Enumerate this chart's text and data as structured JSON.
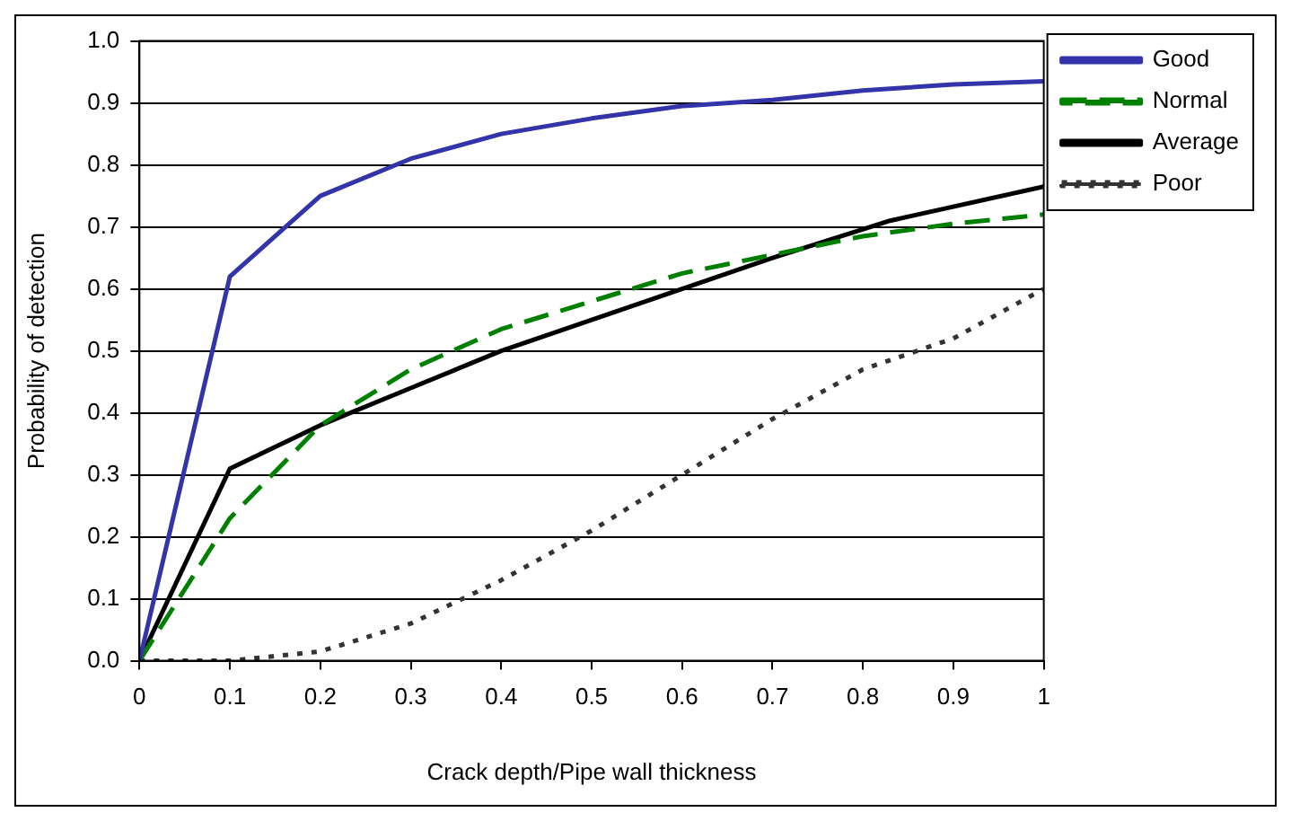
{
  "chart_data": {
    "type": "line",
    "xlabel": "Crack depth/Pipe wall thickness",
    "ylabel": "Probability of detection",
    "xlim": [
      0,
      1
    ],
    "xticks": [
      0,
      0.1,
      0.2,
      0.3,
      0.4,
      0.5,
      0.6,
      0.7,
      0.8,
      0.9,
      1
    ],
    "ylim": [
      0,
      1
    ],
    "yticks": [
      {
        "value": 0,
        "label": "0.0"
      },
      0.1,
      0.2,
      0.3,
      0.4,
      0.5,
      0.6,
      0.7,
      0.8,
      0.9,
      {
        "value": 1,
        "label": "1.0"
      }
    ],
    "grid": "y",
    "legend": "right",
    "marker": "none",
    "series": [
      {
        "name": "Good",
        "color": "#3333aa",
        "line_style": "solid",
        "x": [
          0,
          0.1,
          0.2,
          0.3,
          0.4,
          0.5,
          0.6,
          0.7,
          0.8,
          0.9,
          1
        ],
        "values": [
          0,
          0.62,
          0.75,
          0.81,
          0.85,
          0.875,
          0.895,
          0.905,
          0.92,
          0.93,
          0.935
        ]
      },
      {
        "name": "Normal",
        "color": "#008000",
        "line_style": "dashed",
        "x": [
          0,
          0.1,
          0.2,
          0.3,
          0.4,
          0.5,
          0.6,
          0.7,
          0.8,
          0.9,
          1
        ],
        "values": [
          0,
          0.23,
          0.38,
          0.47,
          0.535,
          0.58,
          0.625,
          0.655,
          0.685,
          0.705,
          0.72
        ]
      },
      {
        "name": "Average",
        "color": "#000000",
        "line_style": "solid",
        "x": [
          0,
          0.1,
          0.2,
          0.3,
          0.4,
          0.5,
          0.6,
          0.7,
          0.83,
          1
        ],
        "values": [
          0,
          0.31,
          0.38,
          0.44,
          0.5,
          0.55,
          0.6,
          0.65,
          0.71,
          0.765
        ]
      },
      {
        "name": "Poor",
        "color": "#333333",
        "line_style": "dotted",
        "x": [
          0,
          0.1,
          0.2,
          0.3,
          0.4,
          0.5,
          0.6,
          0.7,
          0.8,
          0.9,
          1
        ],
        "values": [
          0,
          0,
          0.015,
          0.06,
          0.13,
          0.21,
          0.3,
          0.39,
          0.47,
          0.52,
          0.6
        ]
      }
    ]
  }
}
